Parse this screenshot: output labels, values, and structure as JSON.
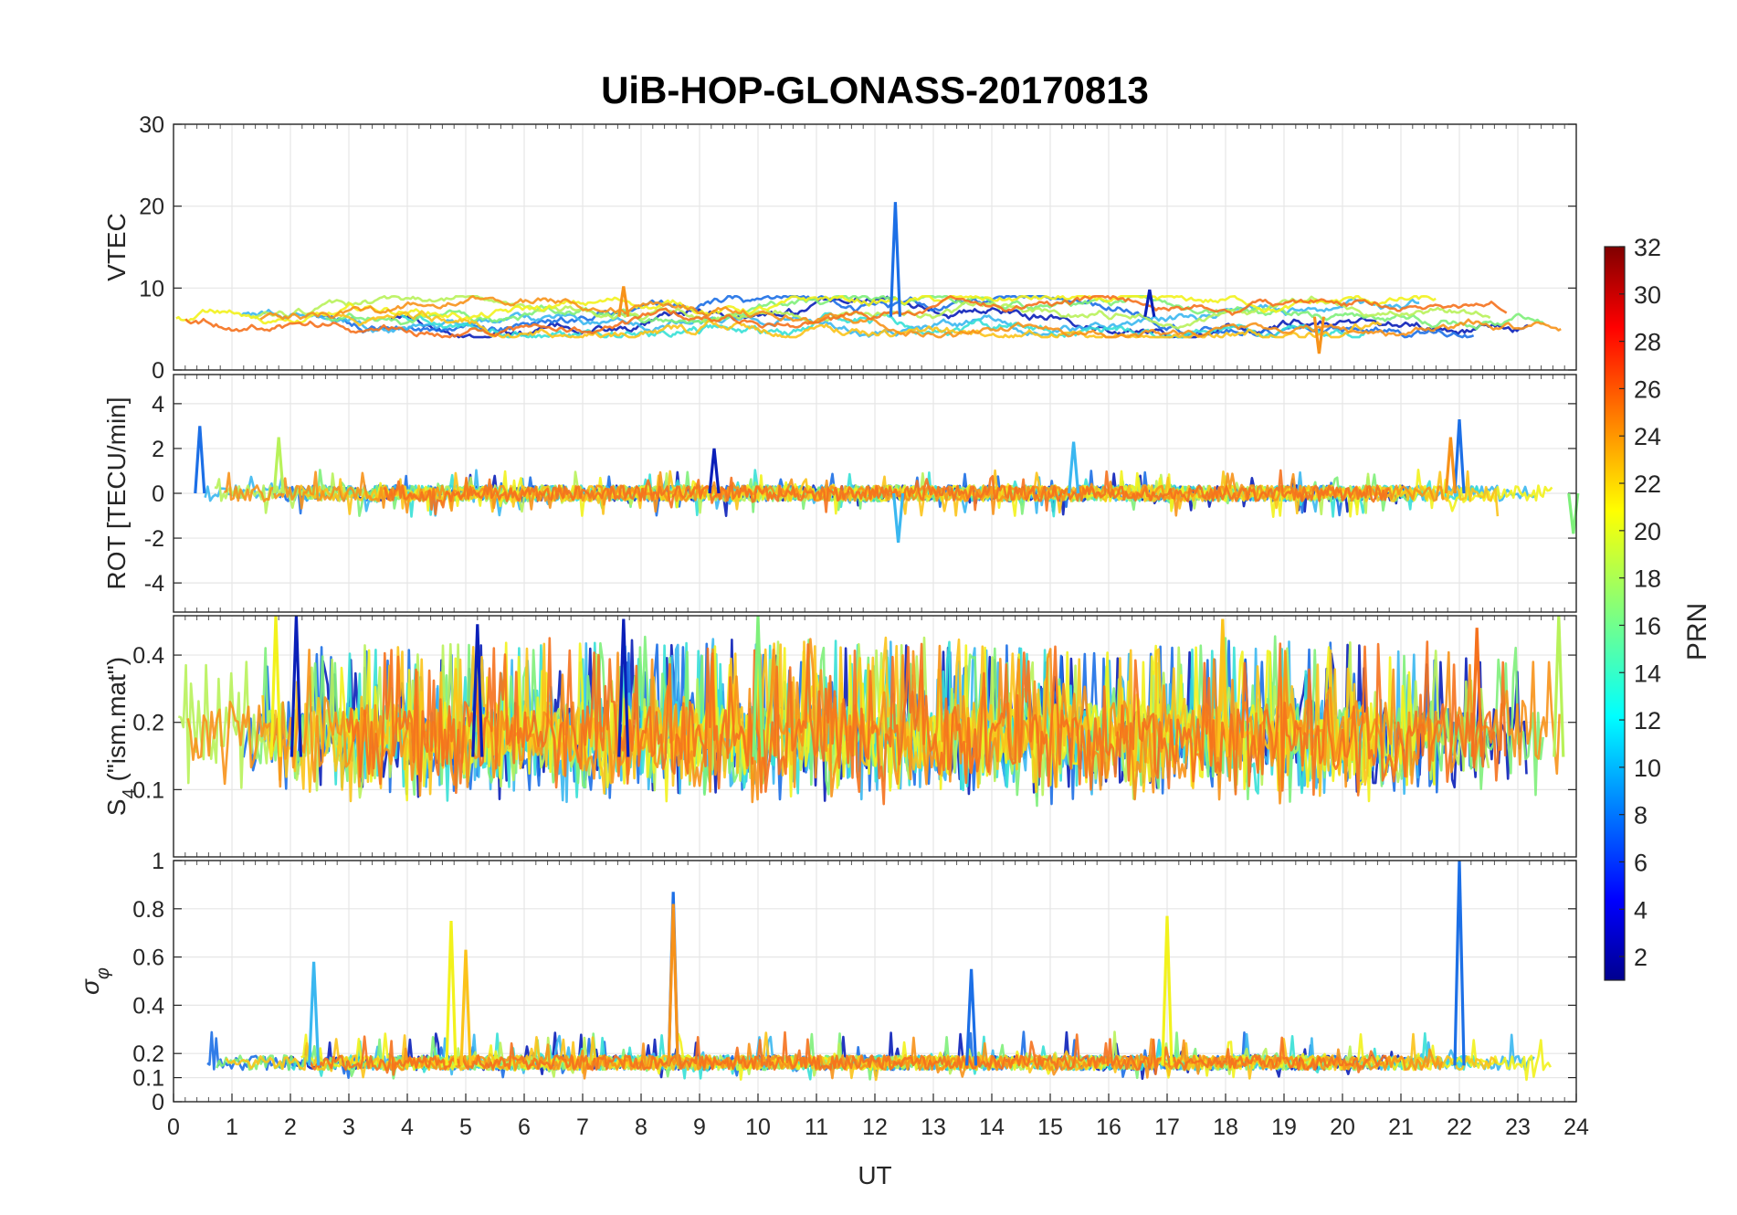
{
  "chart_data": {
    "type": "line",
    "title": "UiB-HOP-GLONASS-20170813",
    "xlabel": "UT",
    "xlim": [
      0,
      24
    ],
    "x_ticks": [
      "0",
      "1",
      "2",
      "3",
      "4",
      "5",
      "6",
      "7",
      "8",
      "9",
      "10",
      "11",
      "12",
      "13",
      "14",
      "15",
      "16",
      "17",
      "18",
      "19",
      "20",
      "21",
      "22",
      "23",
      "24"
    ],
    "grid": true,
    "colorbar": {
      "label": "PRN",
      "colormap": "jet",
      "range": [
        1,
        32
      ],
      "ticks": [
        "2",
        "4",
        "6",
        "8",
        "10",
        "12",
        "14",
        "16",
        "18",
        "20",
        "22",
        "24",
        "26",
        "28",
        "30",
        "32"
      ]
    },
    "series_colors": [
      "#0a1fb8",
      "#1c6fe6",
      "#3ab7f0",
      "#36e0d6",
      "#7ef07a",
      "#b8f25a",
      "#f2f21c",
      "#fbc31a",
      "#f7921a",
      "#f5711d"
    ],
    "panels": [
      {
        "name": "vtec",
        "ylabel": "VTEC",
        "ylim": [
          0,
          30
        ],
        "y_ticks": [
          0,
          10,
          20,
          30
        ],
        "y_tick_labels": [
          "0",
          "10",
          "20",
          "30"
        ],
        "baseline": 6.5,
        "noise": 1.1,
        "features": [
          {
            "x": 12.35,
            "y": 20.5,
            "color": 1
          },
          {
            "x": 7.7,
            "y": 10.2,
            "color": 8
          },
          {
            "x": 19.6,
            "y": 2.0,
            "color": 8
          },
          {
            "x": 16.7,
            "y": 9.8,
            "color": 0
          }
        ]
      },
      {
        "name": "rot",
        "ylabel": "ROT [TECU/min]",
        "ylim": [
          -5.3,
          5.3
        ],
        "y_ticks": [
          -4,
          -2,
          0,
          2,
          4
        ],
        "y_tick_labels": [
          "-4",
          "-2",
          "0",
          "2",
          "4"
        ],
        "baseline": 0,
        "noise": 0.35,
        "features": [
          {
            "x": 0.45,
            "y": 3.0,
            "color": 1
          },
          {
            "x": 1.8,
            "y": 2.5,
            "color": 5
          },
          {
            "x": 9.25,
            "y": 2.0,
            "color": 0
          },
          {
            "x": 12.4,
            "y": -2.2,
            "color": 2
          },
          {
            "x": 15.4,
            "y": 2.3,
            "color": 2
          },
          {
            "x": 22.0,
            "y": 3.3,
            "color": 1
          },
          {
            "x": 21.85,
            "y": 2.5,
            "color": 8
          },
          {
            "x": 23.95,
            "y": -1.8,
            "color": 4
          }
        ]
      },
      {
        "name": "s4",
        "ylabel": "S4 (\"ism.mat\")",
        "ylim": [
          0.05,
          0.6
        ],
        "scale": "log",
        "y_ticks": [
          0.1,
          0.2,
          0.4
        ],
        "y_tick_labels": [
          "0.1",
          "0.2",
          "0.4"
        ],
        "baseline": 0.14,
        "noise": 0.12,
        "features": [
          {
            "x": 2.1,
            "y": 0.6,
            "color": 0
          },
          {
            "x": 1.75,
            "y": 0.6,
            "color": 6
          },
          {
            "x": 7.7,
            "y": 0.58,
            "color": 0
          },
          {
            "x": 10.0,
            "y": 0.6,
            "color": 4
          },
          {
            "x": 17.95,
            "y": 0.58,
            "color": 7
          },
          {
            "x": 23.7,
            "y": 0.6,
            "color": 5
          },
          {
            "x": 22.3,
            "y": 0.53,
            "color": 9
          },
          {
            "x": 5.2,
            "y": 0.55,
            "color": 0
          }
        ]
      },
      {
        "name": "sigma",
        "ylabel": "σφ",
        "ylim": [
          0,
          1.0
        ],
        "y_ticks": [
          0,
          0.1,
          0.2,
          0.4,
          0.6,
          0.8,
          1
        ],
        "y_tick_labels": [
          "0",
          "0.1",
          "0.2",
          "0.4",
          "0.6",
          "0.8",
          "1"
        ],
        "baseline": 0.15,
        "noise": 0.05,
        "features": [
          {
            "x": 8.55,
            "y": 0.87,
            "color": 1
          },
          {
            "x": 8.55,
            "y": 0.82,
            "color": 8
          },
          {
            "x": 4.75,
            "y": 0.75,
            "color": 6
          },
          {
            "x": 17.0,
            "y": 0.77,
            "color": 6
          },
          {
            "x": 22.0,
            "y": 1.0,
            "color": 1
          },
          {
            "x": 2.4,
            "y": 0.58,
            "color": 2
          },
          {
            "x": 13.65,
            "y": 0.55,
            "color": 1
          },
          {
            "x": 5.0,
            "y": 0.63,
            "color": 7
          }
        ]
      }
    ]
  }
}
